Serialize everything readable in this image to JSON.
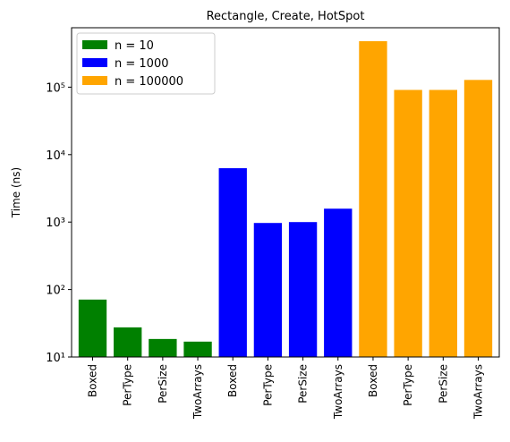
{
  "chart_data": {
    "type": "bar",
    "title": "Rectangle, Create, HotSpot",
    "ylabel": "Time (ns)",
    "categories": [
      "Boxed",
      "PerType",
      "PerSize",
      "TwoArrays",
      "Boxed",
      "PerType",
      "PerSize",
      "TwoArrays",
      "Boxed",
      "PerType",
      "PerSize",
      "TwoArrays"
    ],
    "series": [
      {
        "name": "n = 10",
        "color": "#008000",
        "values": [
          71,
          27.5,
          18.5,
          16.9,
          null,
          null,
          null,
          null,
          null,
          null,
          null,
          null
        ]
      },
      {
        "name": "n = 1000",
        "color": "#0000ff",
        "values": [
          null,
          null,
          null,
          null,
          6300,
          970,
          1000,
          1580,
          null,
          null,
          null,
          null
        ]
      },
      {
        "name": "n = 100000",
        "color": "#ffa500",
        "values": [
          null,
          null,
          null,
          null,
          null,
          null,
          null,
          null,
          480000,
          91000,
          91000,
          128000
        ]
      }
    ],
    "log_y": true,
    "ylim": [
      10,
      760000
    ],
    "yticks": [
      {
        "value": 10,
        "label": "10¹"
      },
      {
        "value": 100,
        "label": "10²"
      },
      {
        "value": 1000,
        "label": "10³"
      },
      {
        "value": 10000,
        "label": "10⁴"
      },
      {
        "value": 100000,
        "label": "10⁵"
      }
    ],
    "legend": "upper left"
  }
}
